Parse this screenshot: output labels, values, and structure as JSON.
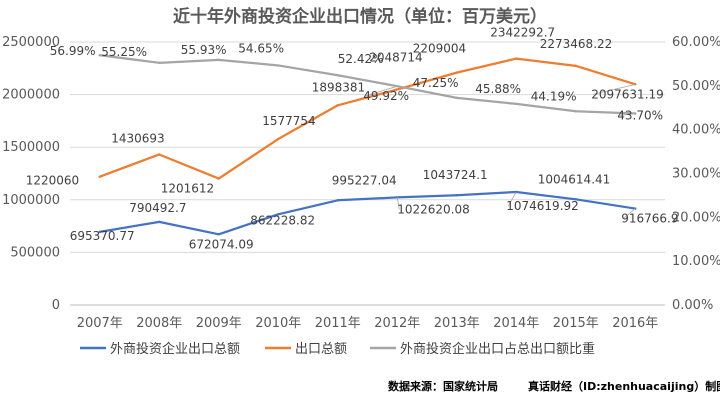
{
  "chart_data": {
    "type": "line",
    "title": "近十年外商投资企业出口情况（单位：百万美元）",
    "categories": [
      "2007年",
      "2008年",
      "2009年",
      "2010年",
      "2011年",
      "2012年",
      "2013年",
      "2014年",
      "2015年",
      "2016年"
    ],
    "y_left": {
      "ylim": [
        0,
        2500000
      ],
      "ticks": [
        "0",
        "500000",
        "1000000",
        "1500000",
        "2000000",
        "2500000"
      ]
    },
    "y_right": {
      "ylim": [
        0,
        60
      ],
      "ticks": [
        "0.00%",
        "10.00%",
        "20.00%",
        "30.00%",
        "40.00%",
        "50.00%",
        "60.00%"
      ]
    },
    "grid": true,
    "legend_position": "bottom",
    "series": [
      {
        "name": "外商投资企业出口总额",
        "axis": "left",
        "color": "#4472c4",
        "values": [
          695370.77,
          790492.7,
          672074.09,
          862228.82,
          995227.04,
          1022620.08,
          1043724.1,
          1074619.92,
          1004614.41,
          916766.9
        ],
        "labels": [
          "695370.77",
          "790492.7",
          "672074.09",
          "862228.82",
          "995227.04",
          "1022620.08",
          "1043724.1",
          "1074619.92",
          "1004614.41",
          "916766.9"
        ]
      },
      {
        "name": "出口总额",
        "axis": "left",
        "color": "#ed7d31",
        "values": [
          1220060,
          1430693,
          1201612,
          1577754,
          1898381,
          2048714,
          2209004,
          2342292.7,
          2273468.22,
          2097631.19
        ],
        "labels": [
          "1220060",
          "1430693",
          "1201612",
          "1577754",
          "1898381",
          "2048714",
          "2209004",
          "2342292.7",
          "2273468.22",
          "2097631.19"
        ]
      },
      {
        "name": "外商投资企业出口占总出口额比重",
        "axis": "right",
        "color": "#a5a5a5",
        "values": [
          56.99,
          55.25,
          55.93,
          54.65,
          52.42,
          49.92,
          47.25,
          45.88,
          44.19,
          43.7
        ],
        "labels": [
          "56.99%",
          "55.25%",
          "55.93%",
          "54.65%",
          "52.42%",
          "49.92%",
          "47.25%",
          "45.88%",
          "44.19%",
          "43.70%"
        ]
      }
    ]
  },
  "source_note": "数据来源：国家统计局",
  "credit": "真话财经（ID:zhenhuacaijing）制图"
}
